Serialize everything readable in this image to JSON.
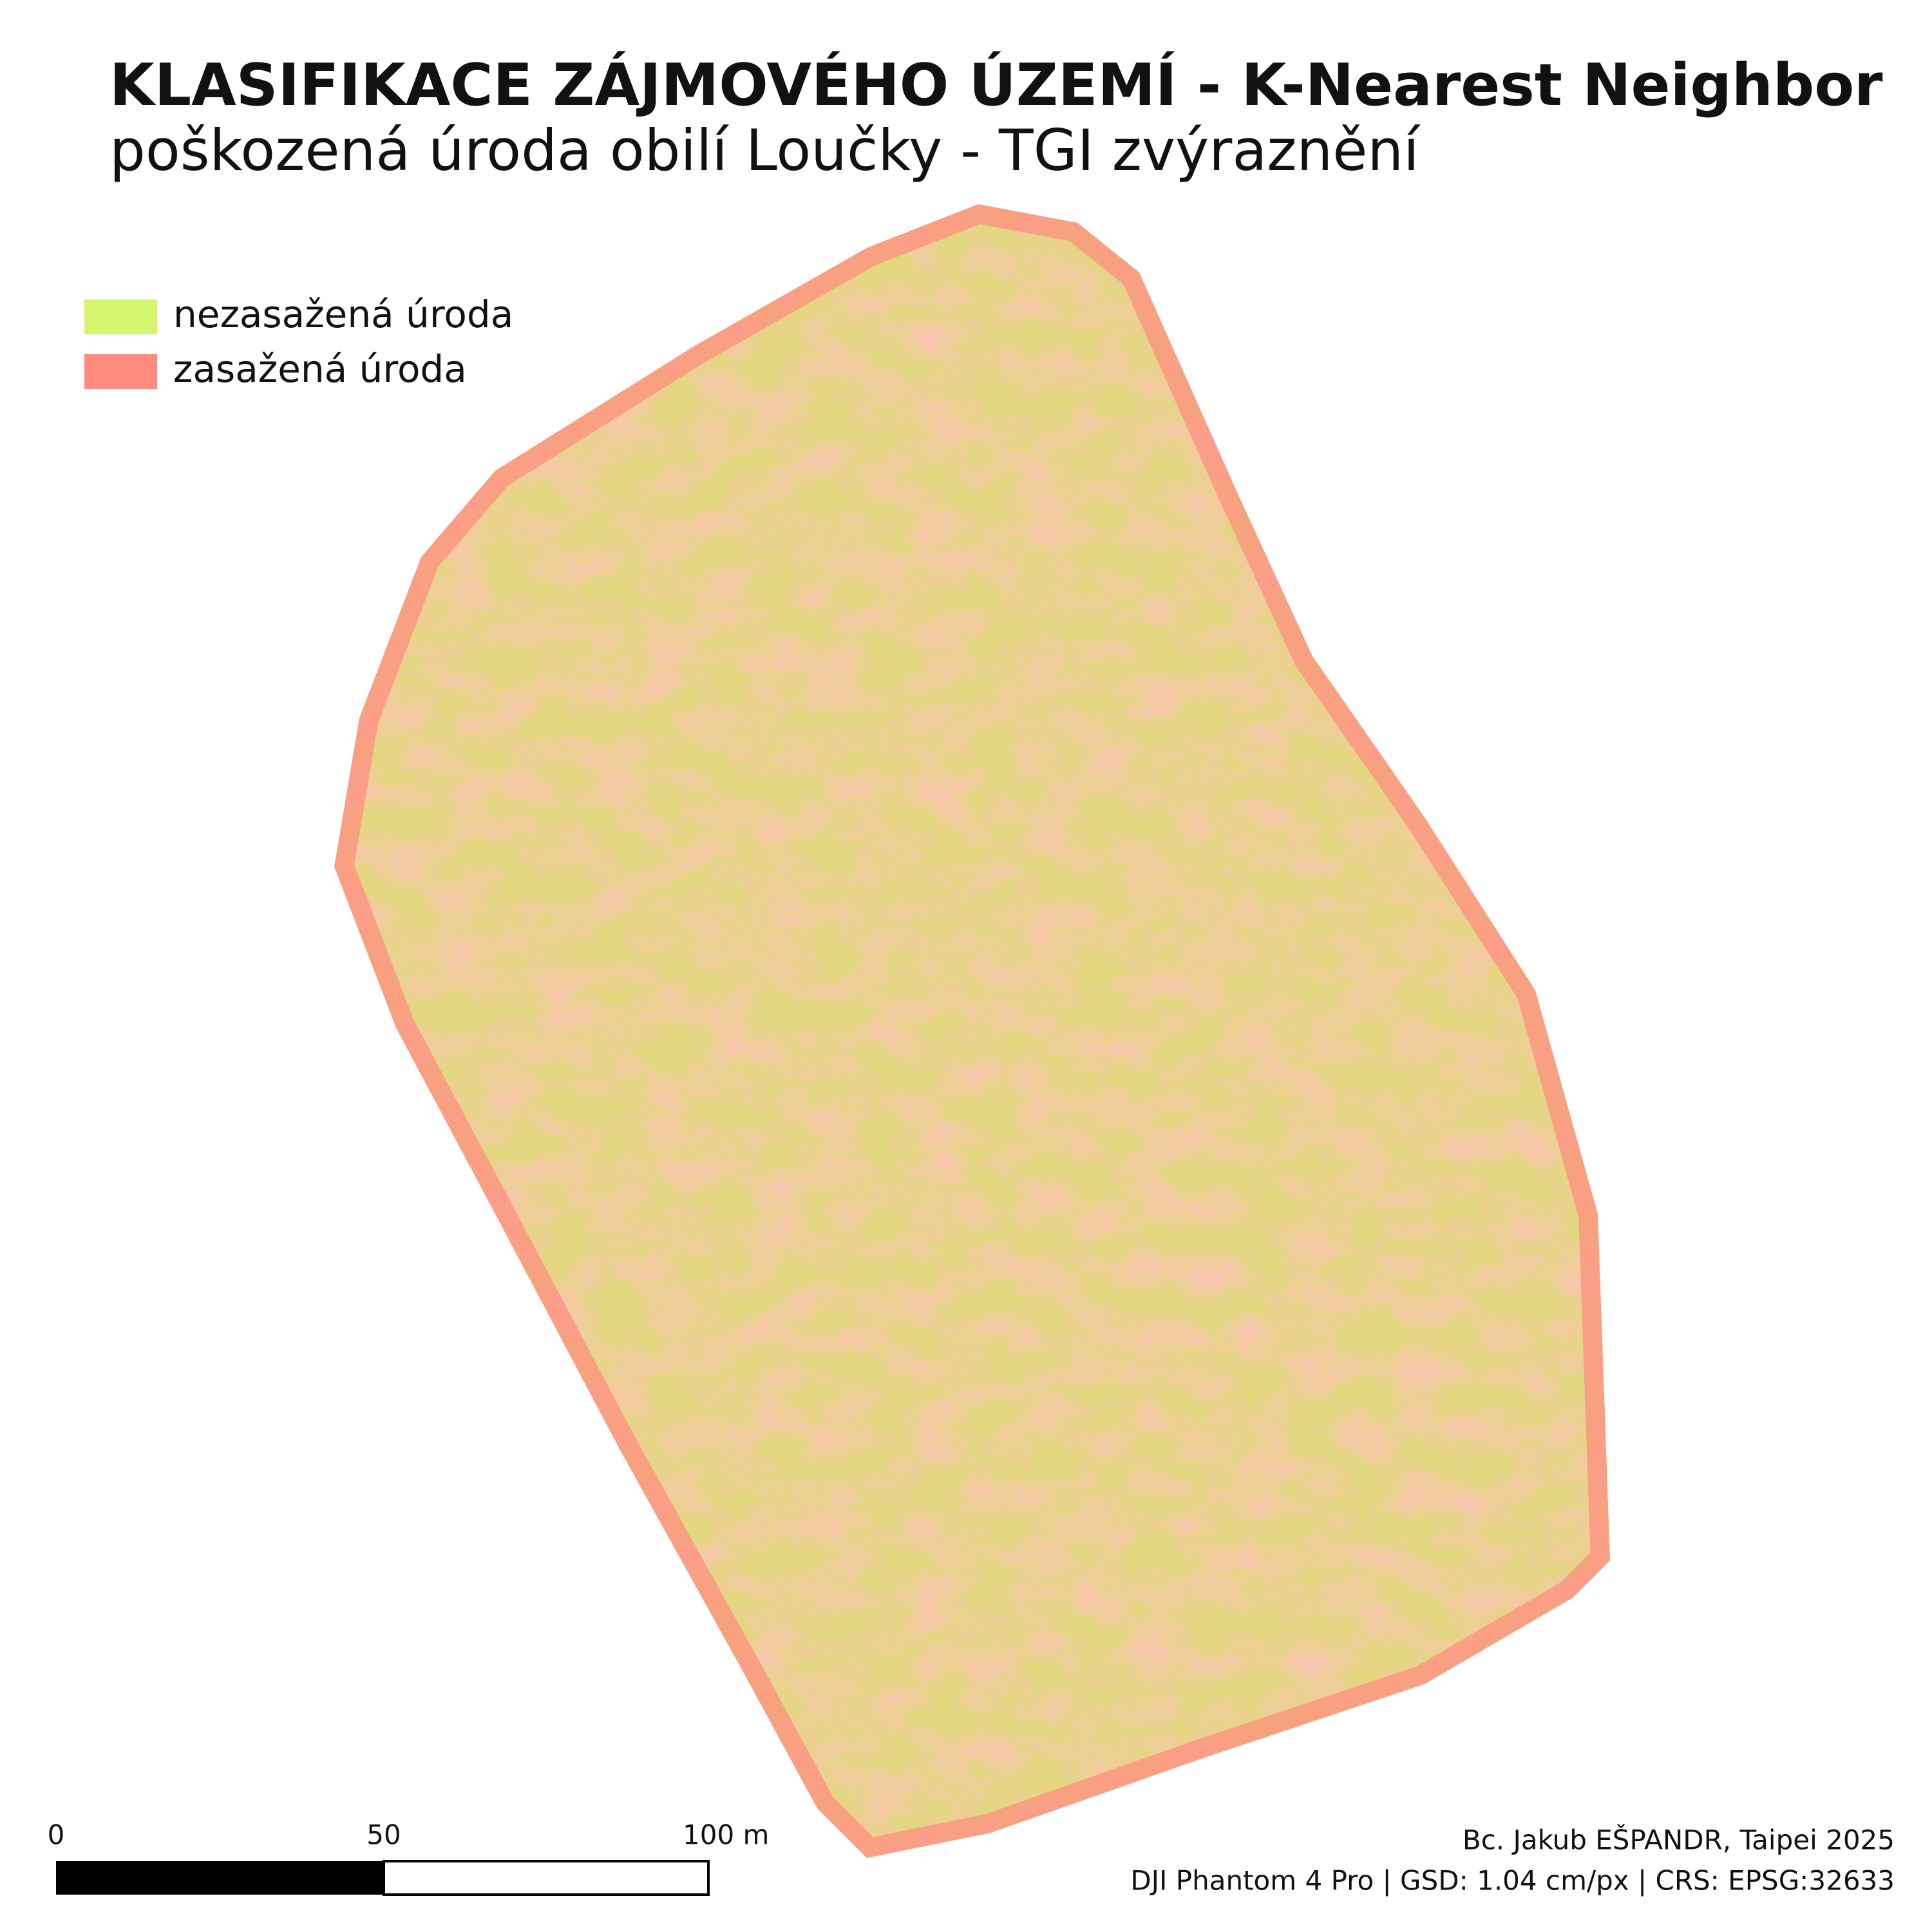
{
  "header": {
    "title": "KLASIFIKACE  ZÁJMOVÉHO ÚZEMÍ - K-Nearest Neighbor",
    "subtitle": "poškozená úroda obilí Loučky - TGI zvýraznění"
  },
  "legend": [
    {
      "label": "nezasažená úroda",
      "color": "#d4f56e"
    },
    {
      "label": "zasažená úroda",
      "color": "#ff8a7e"
    }
  ],
  "scalebar": {
    "labels": [
      "0",
      "50",
      "100 m"
    ]
  },
  "credits": [
    "Bc. Jakub EŠPANDR, Taipei 2025",
    "DJI Phantom 4 Pro | GSD: 1.04 cm/px | CRS: EPSG:32633"
  ]
}
